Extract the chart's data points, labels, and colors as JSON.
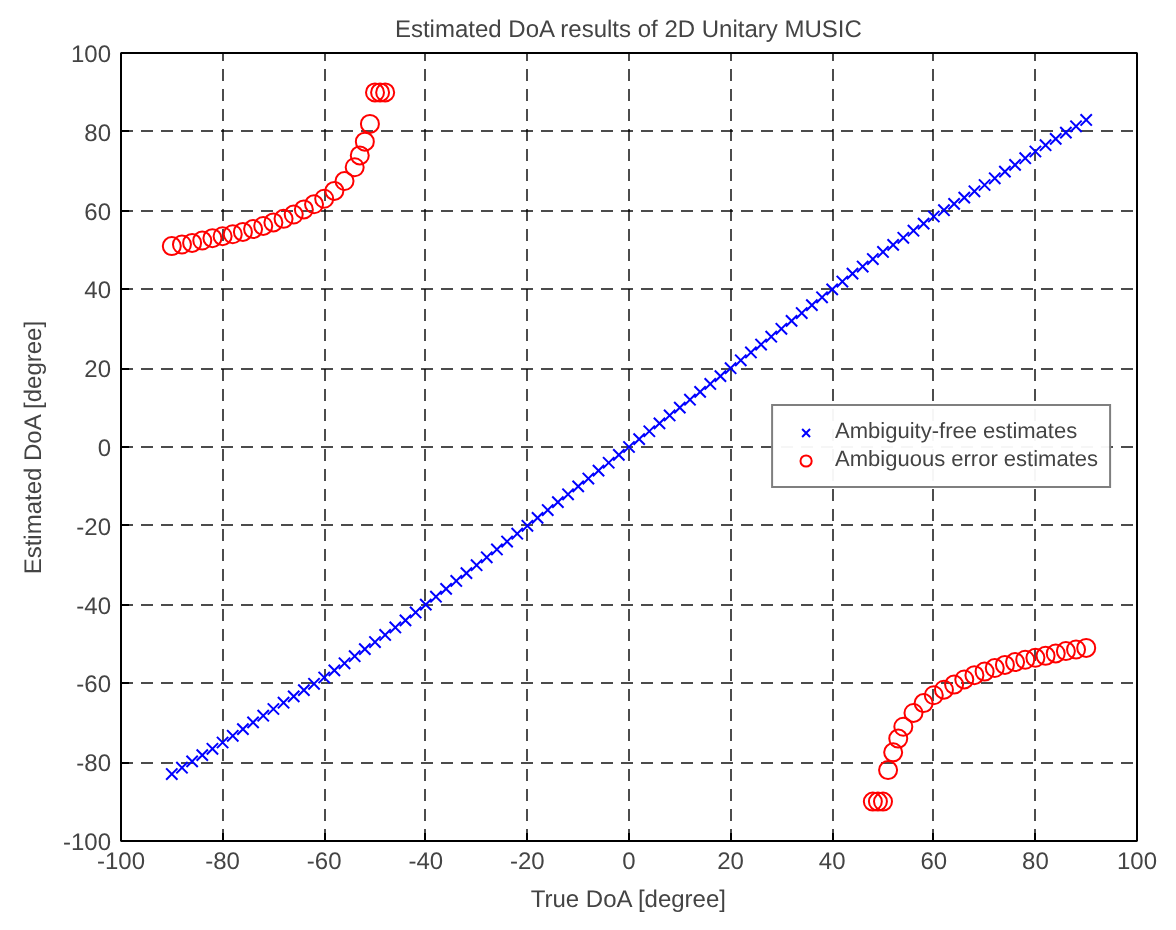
{
  "chart_data": {
    "type": "scatter",
    "title": "Estimated DoA results of 2D Unitary MUSIC",
    "xlabel": "True DoA [degree]",
    "ylabel": "Estimated DoA [degree]",
    "xlim": [
      -100,
      100
    ],
    "ylim": [
      -100,
      100
    ],
    "xticks": [
      -100,
      -80,
      -60,
      -40,
      -20,
      0,
      20,
      40,
      60,
      80,
      100
    ],
    "yticks": [
      -100,
      -80,
      -60,
      -40,
      -20,
      0,
      20,
      40,
      60,
      80,
      100
    ],
    "grid": true,
    "legend": "right",
    "series": [
      {
        "name": "Ambiguity-free estimates",
        "color": "#0000ff",
        "marker": "cross",
        "x": [
          -90,
          -88,
          -86,
          -84,
          -82,
          -80,
          -78,
          -76,
          -74,
          -72,
          -70,
          -68,
          -66,
          -64,
          -62,
          -60,
          -58,
          -56,
          -54,
          -52,
          -50,
          -48,
          -46,
          -44,
          -42,
          -40,
          -38,
          -36,
          -34,
          -32,
          -30,
          -28,
          -26,
          -24,
          -22,
          -20,
          -18,
          -16,
          -14,
          -12,
          -10,
          -8,
          -6,
          -4,
          -2,
          0,
          2,
          4,
          6,
          8,
          10,
          12,
          14,
          16,
          18,
          20,
          22,
          24,
          26,
          28,
          30,
          32,
          34,
          36,
          38,
          40,
          42,
          44,
          46,
          48,
          50,
          52,
          54,
          56,
          58,
          60,
          62,
          64,
          66,
          68,
          70,
          72,
          74,
          76,
          78,
          80,
          82,
          84,
          86,
          88,
          90
        ],
        "values": [
          -83,
          -81.4,
          -79.8,
          -78.2,
          -76.6,
          -75,
          -73.3,
          -71.6,
          -69.9,
          -68.2,
          -66.5,
          -64.9,
          -63.3,
          -61.7,
          -60.1,
          -58.5,
          -56.7,
          -54.9,
          -53.1,
          -51.3,
          -49.5,
          -47.7,
          -45.8,
          -44,
          -42,
          -40,
          -38,
          -36,
          -34,
          -32,
          -30,
          -28,
          -26,
          -24,
          -22,
          -20,
          -18,
          -16,
          -14,
          -12,
          -10,
          -8,
          -6,
          -4,
          -2,
          0,
          2,
          4,
          6,
          8,
          10,
          12,
          14,
          16,
          18,
          20,
          22,
          24,
          26,
          28,
          30,
          32,
          34,
          36,
          38,
          40,
          42,
          44,
          45.8,
          47.7,
          49.5,
          51.3,
          53.1,
          54.9,
          56.7,
          58.5,
          60.1,
          61.7,
          63.3,
          64.9,
          66.5,
          68.2,
          69.9,
          71.6,
          73.3,
          75,
          76.6,
          78.2,
          79.8,
          81.4,
          83
        ]
      },
      {
        "name": "Ambiguous error estimates",
        "color": "#ff0000",
        "marker": "circle",
        "x": [
          -90,
          -88,
          -86,
          -84,
          -82,
          -80,
          -78,
          -76,
          -74,
          -72,
          -70,
          -68,
          -66,
          -64,
          -62,
          -60,
          -58,
          -56,
          -54,
          -53,
          -52,
          -51,
          -50,
          -49,
          -48,
          48,
          49,
          50,
          51,
          52,
          53,
          54,
          56,
          58,
          60,
          62,
          64,
          66,
          68,
          70,
          72,
          74,
          76,
          78,
          80,
          82,
          84,
          86,
          88,
          90
        ],
        "values": [
          51,
          51.4,
          51.8,
          52.4,
          53,
          53.5,
          54,
          54.6,
          55.3,
          56.1,
          57,
          57.9,
          59,
          60.3,
          61.6,
          63,
          65,
          67.5,
          71,
          74,
          77.5,
          82,
          90,
          90,
          90,
          -90,
          -90,
          -90,
          -82,
          -77.5,
          -74,
          -71,
          -67.5,
          -65,
          -63,
          -61.6,
          -60.3,
          -59,
          -57.9,
          -57,
          -56.1,
          -55.3,
          -54.6,
          -54,
          -53.5,
          -53,
          -52.4,
          -51.8,
          -51.4,
          -51
        ]
      }
    ]
  }
}
